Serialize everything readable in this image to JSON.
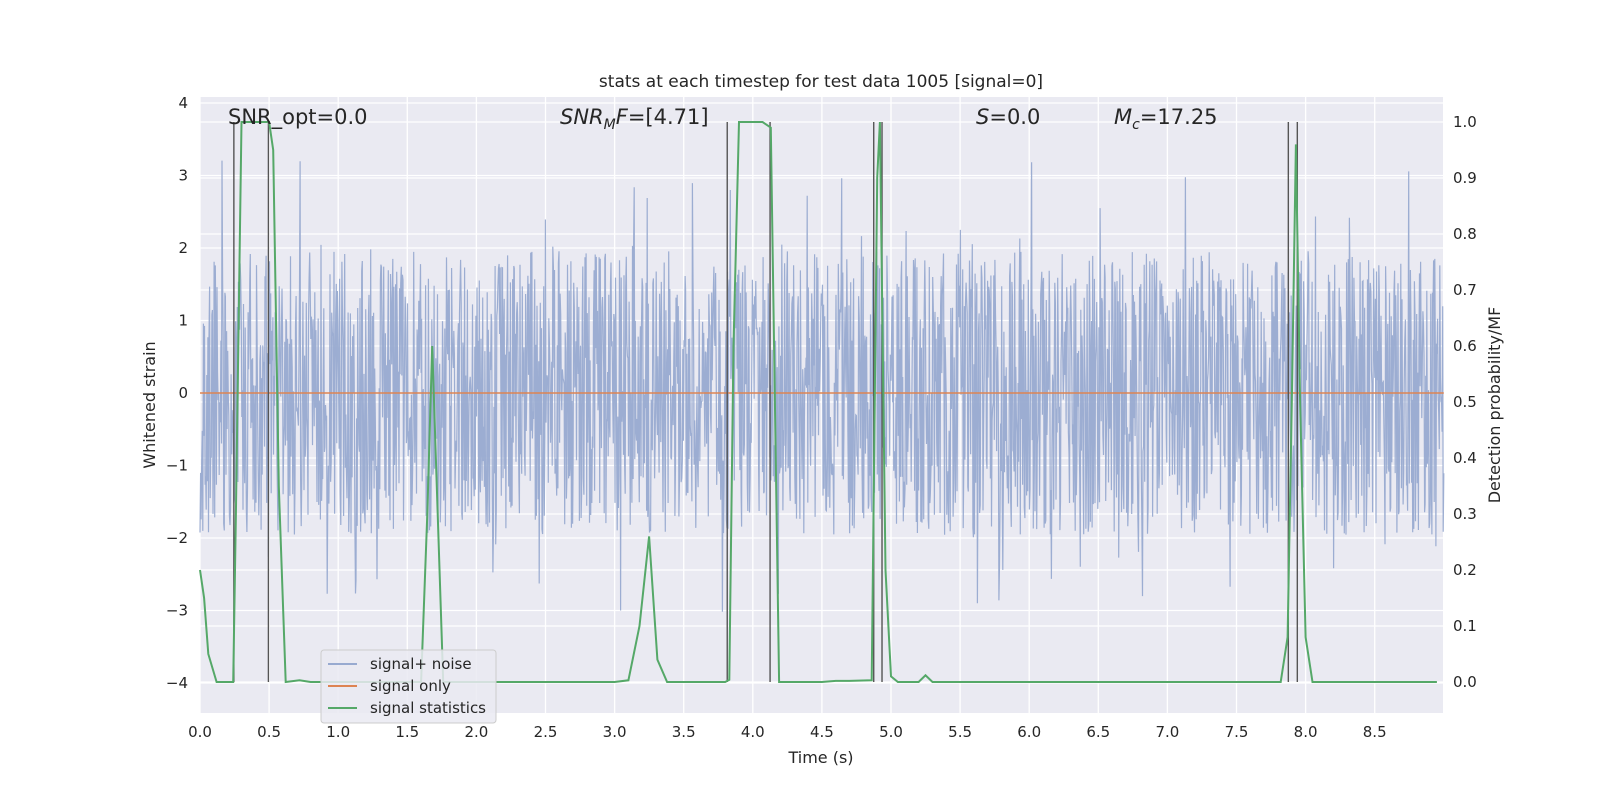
{
  "chart_data": {
    "type": "line",
    "title": "stats at each timestep for test data 1005 [signal=0]",
    "xlabel": "Time (s)",
    "ylabel": "Whitened strain",
    "y2label": "Detection probability/MF",
    "xlim": [
      0,
      9.0
    ],
    "ylim": [
      -4.35,
      4.05
    ],
    "y2lim": [
      -0.045,
      1.04
    ],
    "x_ticks": [
      "0.0",
      "0.5",
      "1.0",
      "1.5",
      "2.0",
      "2.5",
      "3.0",
      "3.5",
      "4.0",
      "4.5",
      "5.0",
      "5.5",
      "6.0",
      "6.5",
      "7.0",
      "7.5",
      "8.0",
      "8.5"
    ],
    "y_ticks": [
      "4",
      "3",
      "2",
      "1",
      "0",
      "−1",
      "−2",
      "−3",
      "−4"
    ],
    "y2_ticks": [
      "1.0",
      "0.9",
      "0.8",
      "0.7",
      "0.6",
      "0.5",
      "0.4",
      "0.3",
      "0.2",
      "0.1",
      "0.0"
    ],
    "grid": true,
    "legend_position": "lower-left",
    "annotations": [
      {
        "text": "SNR_opt=0.0",
        "x": 0.19
      },
      {
        "text": "=[4.71]",
        "prefix": "SNR",
        "sub": "M",
        "suffix": "F",
        "x": 2.6
      },
      {
        "text": "=0.0",
        "prefix": "S",
        "x": 5.6
      },
      {
        "text": "=17.25",
        "prefix": "M",
        "sub": "c",
        "x": 6.6
      }
    ],
    "series": [
      {
        "name": "signal+ noise",
        "color": "#98aad0",
        "axis": "left",
        "description": "dense noise strain, envelope roughly ±2.3 with spikes to about ±3.8",
        "mean": 0.0,
        "envelope": 2.3,
        "peak": 3.8
      },
      {
        "name": "signal only",
        "color": "#dd8452",
        "axis": "left",
        "x": [
          0,
          9.0
        ],
        "y": [
          0,
          0
        ]
      },
      {
        "name": "signal statistics",
        "color": "#55a868",
        "axis": "right",
        "x": [
          0,
          0.03,
          0.06,
          0.12,
          0.18,
          0.24,
          0.26,
          0.3,
          0.36,
          0.42,
          0.46,
          0.5,
          0.53,
          0.57,
          0.62,
          0.72,
          0.8,
          1.0,
          1.2,
          1.4,
          1.6,
          1.645,
          1.68,
          1.72,
          1.76,
          1.8,
          2.0,
          2.5,
          3.0,
          3.1,
          3.18,
          3.25,
          3.31,
          3.38,
          3.5,
          3.8,
          3.83,
          3.86,
          3.9,
          4.0,
          4.07,
          4.13,
          4.16,
          4.19,
          4.3,
          4.5,
          4.6,
          4.7,
          4.86,
          4.9,
          4.92,
          4.94,
          4.96,
          5.0,
          5.05,
          5.1,
          5.2,
          5.25,
          5.3,
          5.5,
          6.0,
          7.0,
          7.6,
          7.82,
          7.87,
          7.9,
          7.93,
          7.96,
          8.0,
          8.05,
          8.1,
          8.5,
          8.95
        ],
        "y": [
          0.2,
          0.15,
          0.05,
          0.0,
          0.0,
          0.0,
          0.3,
          1.0,
          1.0,
          1.0,
          1.0,
          1.0,
          0.95,
          0.35,
          0.0,
          0.003,
          0.0,
          0.0,
          0.0,
          0.0,
          0.0,
          0.3,
          0.6,
          0.3,
          0.0,
          0.0,
          0.0,
          0.0,
          0.0,
          0.003,
          0.1,
          0.26,
          0.04,
          0.0,
          0.0,
          0.0,
          0.004,
          0.6,
          1.0,
          1.0,
          1.0,
          0.99,
          0.5,
          0.0,
          0.0,
          0.0,
          0.002,
          0.002,
          0.003,
          0.9,
          1.0,
          0.6,
          0.2,
          0.01,
          0.0,
          0.0,
          0.0,
          0.012,
          0.0,
          0.0,
          0.0,
          0.0,
          0.0,
          0.0,
          0.08,
          0.5,
          0.96,
          0.5,
          0.08,
          0.0,
          0.0,
          0.0,
          0.0
        ]
      }
    ],
    "vertical_markers": [
      0.245,
      0.495,
      3.815,
      4.125,
      4.875,
      4.935,
      7.875,
      7.94
    ]
  }
}
